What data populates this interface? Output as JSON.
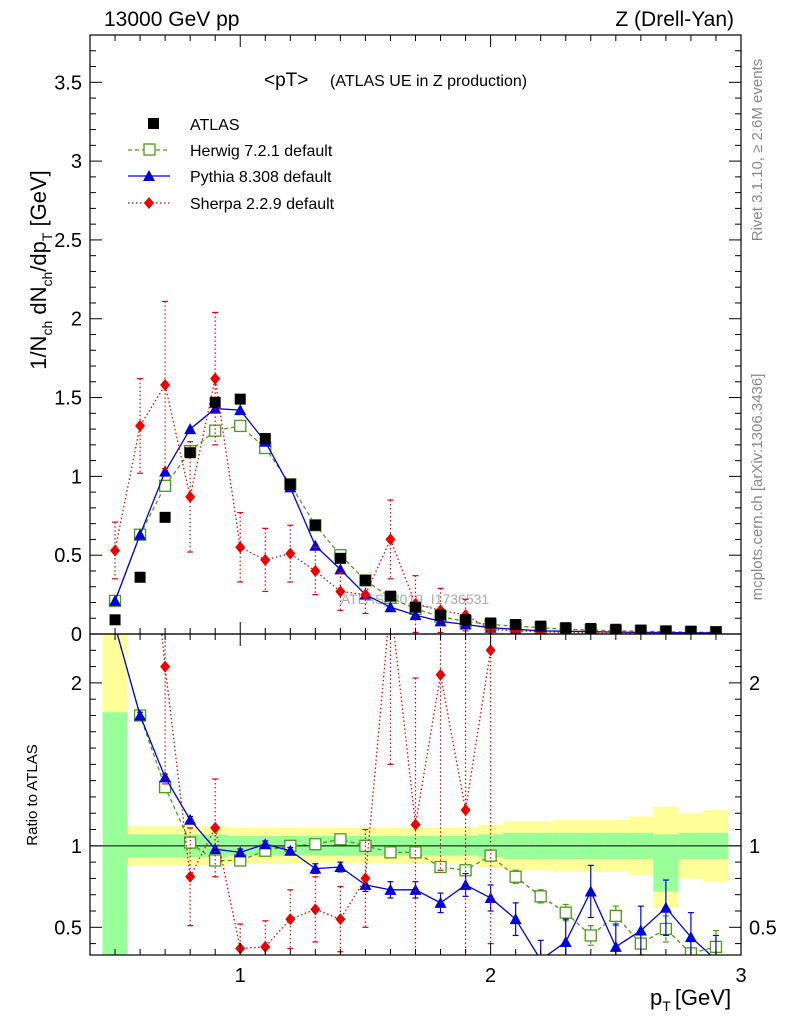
{
  "header": {
    "left": "13000 GeV pp",
    "right": "Z (Drell-Yan)"
  },
  "side_labels": {
    "rivet": "Rivet 3.1.10, ≥ 2.6M events",
    "mcplots": "mcplots.cern.ch [arXiv:1306.3436]"
  },
  "chart_data": {
    "type": "scatter",
    "title": "<pT>",
    "subtitle": "(ATLAS UE in Z production)",
    "watermark": "ATLAS_2019_I1736531",
    "x": [
      0.5,
      0.6,
      0.7,
      0.8,
      0.9,
      1.0,
      1.1,
      1.2,
      1.3,
      1.4,
      1.5,
      1.6,
      1.7,
      1.8,
      1.9,
      2.0,
      2.1,
      2.2,
      2.3,
      2.4,
      2.5,
      2.6,
      2.7,
      2.8,
      2.9
    ],
    "xlim": [
      0.4,
      3.0
    ],
    "xticks": [
      1,
      2,
      3
    ],
    "xlabel_main": "p",
    "xlabel_sub": "T",
    "xlabel_unit": "[GeV]",
    "main": {
      "ylim": [
        0,
        3.8
      ],
      "yticks": [
        0,
        0.5,
        1,
        1.5,
        2,
        2.5,
        3,
        3.5
      ],
      "yticklabels": [
        "0",
        "0.5",
        "1",
        "1.5",
        "2",
        "2.5",
        "3",
        "3.5"
      ],
      "ylabel": "1/N_ch dN_ch/dp_T [GeV]"
    },
    "ratio": {
      "ylim": [
        0.33,
        2.3
      ],
      "yticks": [
        0.5,
        1,
        2
      ],
      "yticklabels": [
        "0.5",
        "1",
        "2"
      ],
      "ylabel": "Ratio to ATLAS",
      "band_stat": [
        [
          0.18,
          1.82
        ],
        [
          0.93,
          1.07
        ],
        [
          0.93,
          1.07
        ],
        [
          0.93,
          1.07
        ],
        [
          0.93,
          1.07
        ],
        [
          0.94,
          1.06
        ],
        [
          0.94,
          1.06
        ],
        [
          0.94,
          1.06
        ],
        [
          0.94,
          1.06
        ],
        [
          0.94,
          1.06
        ],
        [
          0.94,
          1.06
        ],
        [
          0.94,
          1.06
        ],
        [
          0.94,
          1.06
        ],
        [
          0.94,
          1.06
        ],
        [
          0.94,
          1.06
        ],
        [
          0.93,
          1.07
        ],
        [
          0.92,
          1.08
        ],
        [
          0.92,
          1.08
        ],
        [
          0.92,
          1.08
        ],
        [
          0.92,
          1.08
        ],
        [
          0.92,
          1.08
        ],
        [
          0.92,
          1.08
        ],
        [
          0.72,
          1.07
        ],
        [
          0.92,
          1.08
        ],
        [
          0.92,
          1.08
        ]
      ],
      "band_total": [
        [
          0.18,
          2.55
        ],
        [
          0.88,
          1.12
        ],
        [
          0.88,
          1.12
        ],
        [
          0.88,
          1.12
        ],
        [
          0.88,
          1.12
        ],
        [
          0.89,
          1.11
        ],
        [
          0.89,
          1.11
        ],
        [
          0.89,
          1.11
        ],
        [
          0.89,
          1.11
        ],
        [
          0.89,
          1.11
        ],
        [
          0.89,
          1.11
        ],
        [
          0.89,
          1.11
        ],
        [
          0.89,
          1.11
        ],
        [
          0.89,
          1.11
        ],
        [
          0.89,
          1.11
        ],
        [
          0.87,
          1.13
        ],
        [
          0.85,
          1.15
        ],
        [
          0.85,
          1.15
        ],
        [
          0.84,
          1.16
        ],
        [
          0.84,
          1.16
        ],
        [
          0.84,
          1.16
        ],
        [
          0.82,
          1.18
        ],
        [
          0.62,
          1.24
        ],
        [
          0.8,
          1.2
        ],
        [
          0.78,
          1.22
        ]
      ]
    },
    "series": [
      {
        "name": "ATLAS",
        "style": "data",
        "color": "#000000",
        "marker": "filled-square",
        "values": [
          0.09,
          0.36,
          0.74,
          1.15,
          1.47,
          1.49,
          1.24,
          0.95,
          0.69,
          0.48,
          0.34,
          0.24,
          0.17,
          0.12,
          0.09,
          0.07,
          0.06,
          0.05,
          0.04,
          0.035,
          0.03,
          0.025,
          0.02,
          0.018,
          0.015
        ]
      },
      {
        "name": "Herwig 7.2.1 default",
        "style": "dashed",
        "color": "#4a9a1a",
        "marker": "open-square",
        "values": [
          0.21,
          0.63,
          0.94,
          1.16,
          1.29,
          1.32,
          1.18,
          0.95,
          0.69,
          0.5,
          0.34,
          0.23,
          0.16,
          0.11,
          0.08,
          0.06,
          0.05,
          0.04,
          0.03,
          0.025,
          0.02,
          0.018,
          0.014,
          0.012,
          0.01
        ],
        "ratio": [
          2.35,
          1.8,
          1.36,
          1.02,
          0.91,
          0.91,
          0.97,
          1.0,
          1.01,
          1.04,
          1.0,
          0.96,
          0.96,
          0.87,
          0.85,
          0.94,
          0.81,
          0.69,
          0.59,
          0.45,
          0.57,
          0.4,
          0.49,
          0.34,
          0.38
        ],
        "ratio_err": [
          0.02,
          0.02,
          0.02,
          0.02,
          0.02,
          0.02,
          0.02,
          0.02,
          0.02,
          0.02,
          0.02,
          0.02,
          0.02,
          0.03,
          0.03,
          0.03,
          0.04,
          0.04,
          0.05,
          0.06,
          0.06,
          0.07,
          0.08,
          0.09,
          0.1
        ]
      },
      {
        "name": "Pythia 8.308 default",
        "style": "solid",
        "color": "#0000dd",
        "marker": "filled-triangle",
        "values": [
          0.21,
          0.63,
          1.03,
          1.3,
          1.43,
          1.42,
          1.22,
          0.93,
          0.56,
          0.41,
          0.25,
          0.17,
          0.12,
          0.08,
          0.06,
          0.04,
          0.03,
          0.02,
          0.018,
          0.015,
          0.012,
          0.01,
          0.009,
          0.008,
          0.007
        ],
        "ratio": [
          2.35,
          1.8,
          1.42,
          1.16,
          0.98,
          0.96,
          1.01,
          0.97,
          0.86,
          0.87,
          0.76,
          0.73,
          0.73,
          0.65,
          0.76,
          0.68,
          0.55,
          0.3,
          0.41,
          0.72,
          0.38,
          0.48,
          0.62,
          0.44,
          0.3
        ],
        "ratio_err": [
          0.02,
          0.02,
          0.02,
          0.02,
          0.02,
          0.02,
          0.02,
          0.02,
          0.03,
          0.03,
          0.04,
          0.05,
          0.05,
          0.06,
          0.07,
          0.08,
          0.1,
          0.12,
          0.14,
          0.16,
          0.14,
          0.15,
          0.17,
          0.15,
          0.15
        ]
      },
      {
        "name": "Sherpa 2.2.9 default",
        "style": "dotted",
        "color": "#ee0000",
        "marker": "filled-diamond",
        "values": [
          0.53,
          1.32,
          1.58,
          0.87,
          1.62,
          0.55,
          0.47,
          0.51,
          0.4,
          0.27,
          0.25,
          0.6,
          0.19,
          0.15,
          0.12,
          0.03,
          0.02,
          0.015,
          0.01,
          0.01,
          0.008,
          0.006,
          0.005,
          0.004,
          0.004
        ],
        "err_main": [
          0.18,
          0.3,
          0.53,
          0.35,
          0.42,
          0.22,
          0.2,
          0.18,
          0.15,
          0.12,
          0.12,
          0.25,
          0.18,
          0.14,
          0.1,
          0.03,
          0.02,
          0.015,
          0.01,
          0.01,
          0.008,
          0.006,
          0.005,
          0.004,
          0.004
        ],
        "ratio": [
          5.5,
          3.6,
          2.1,
          0.81,
          1.11,
          0.37,
          0.38,
          0.55,
          0.61,
          0.55,
          0.8,
          2.5,
          1.13,
          2.05,
          1.22,
          2.2,
          null,
          null,
          null,
          null,
          null,
          null,
          null,
          null,
          null
        ],
        "ratio_err": [
          2.0,
          1.0,
          0.72,
          0.3,
          0.3,
          0.15,
          0.16,
          0.18,
          0.2,
          0.2,
          0.3,
          1.0,
          0.9,
          1.2,
          1.2,
          1.8,
          null,
          null,
          null,
          null,
          null,
          null,
          null,
          null,
          null
        ]
      }
    ]
  }
}
